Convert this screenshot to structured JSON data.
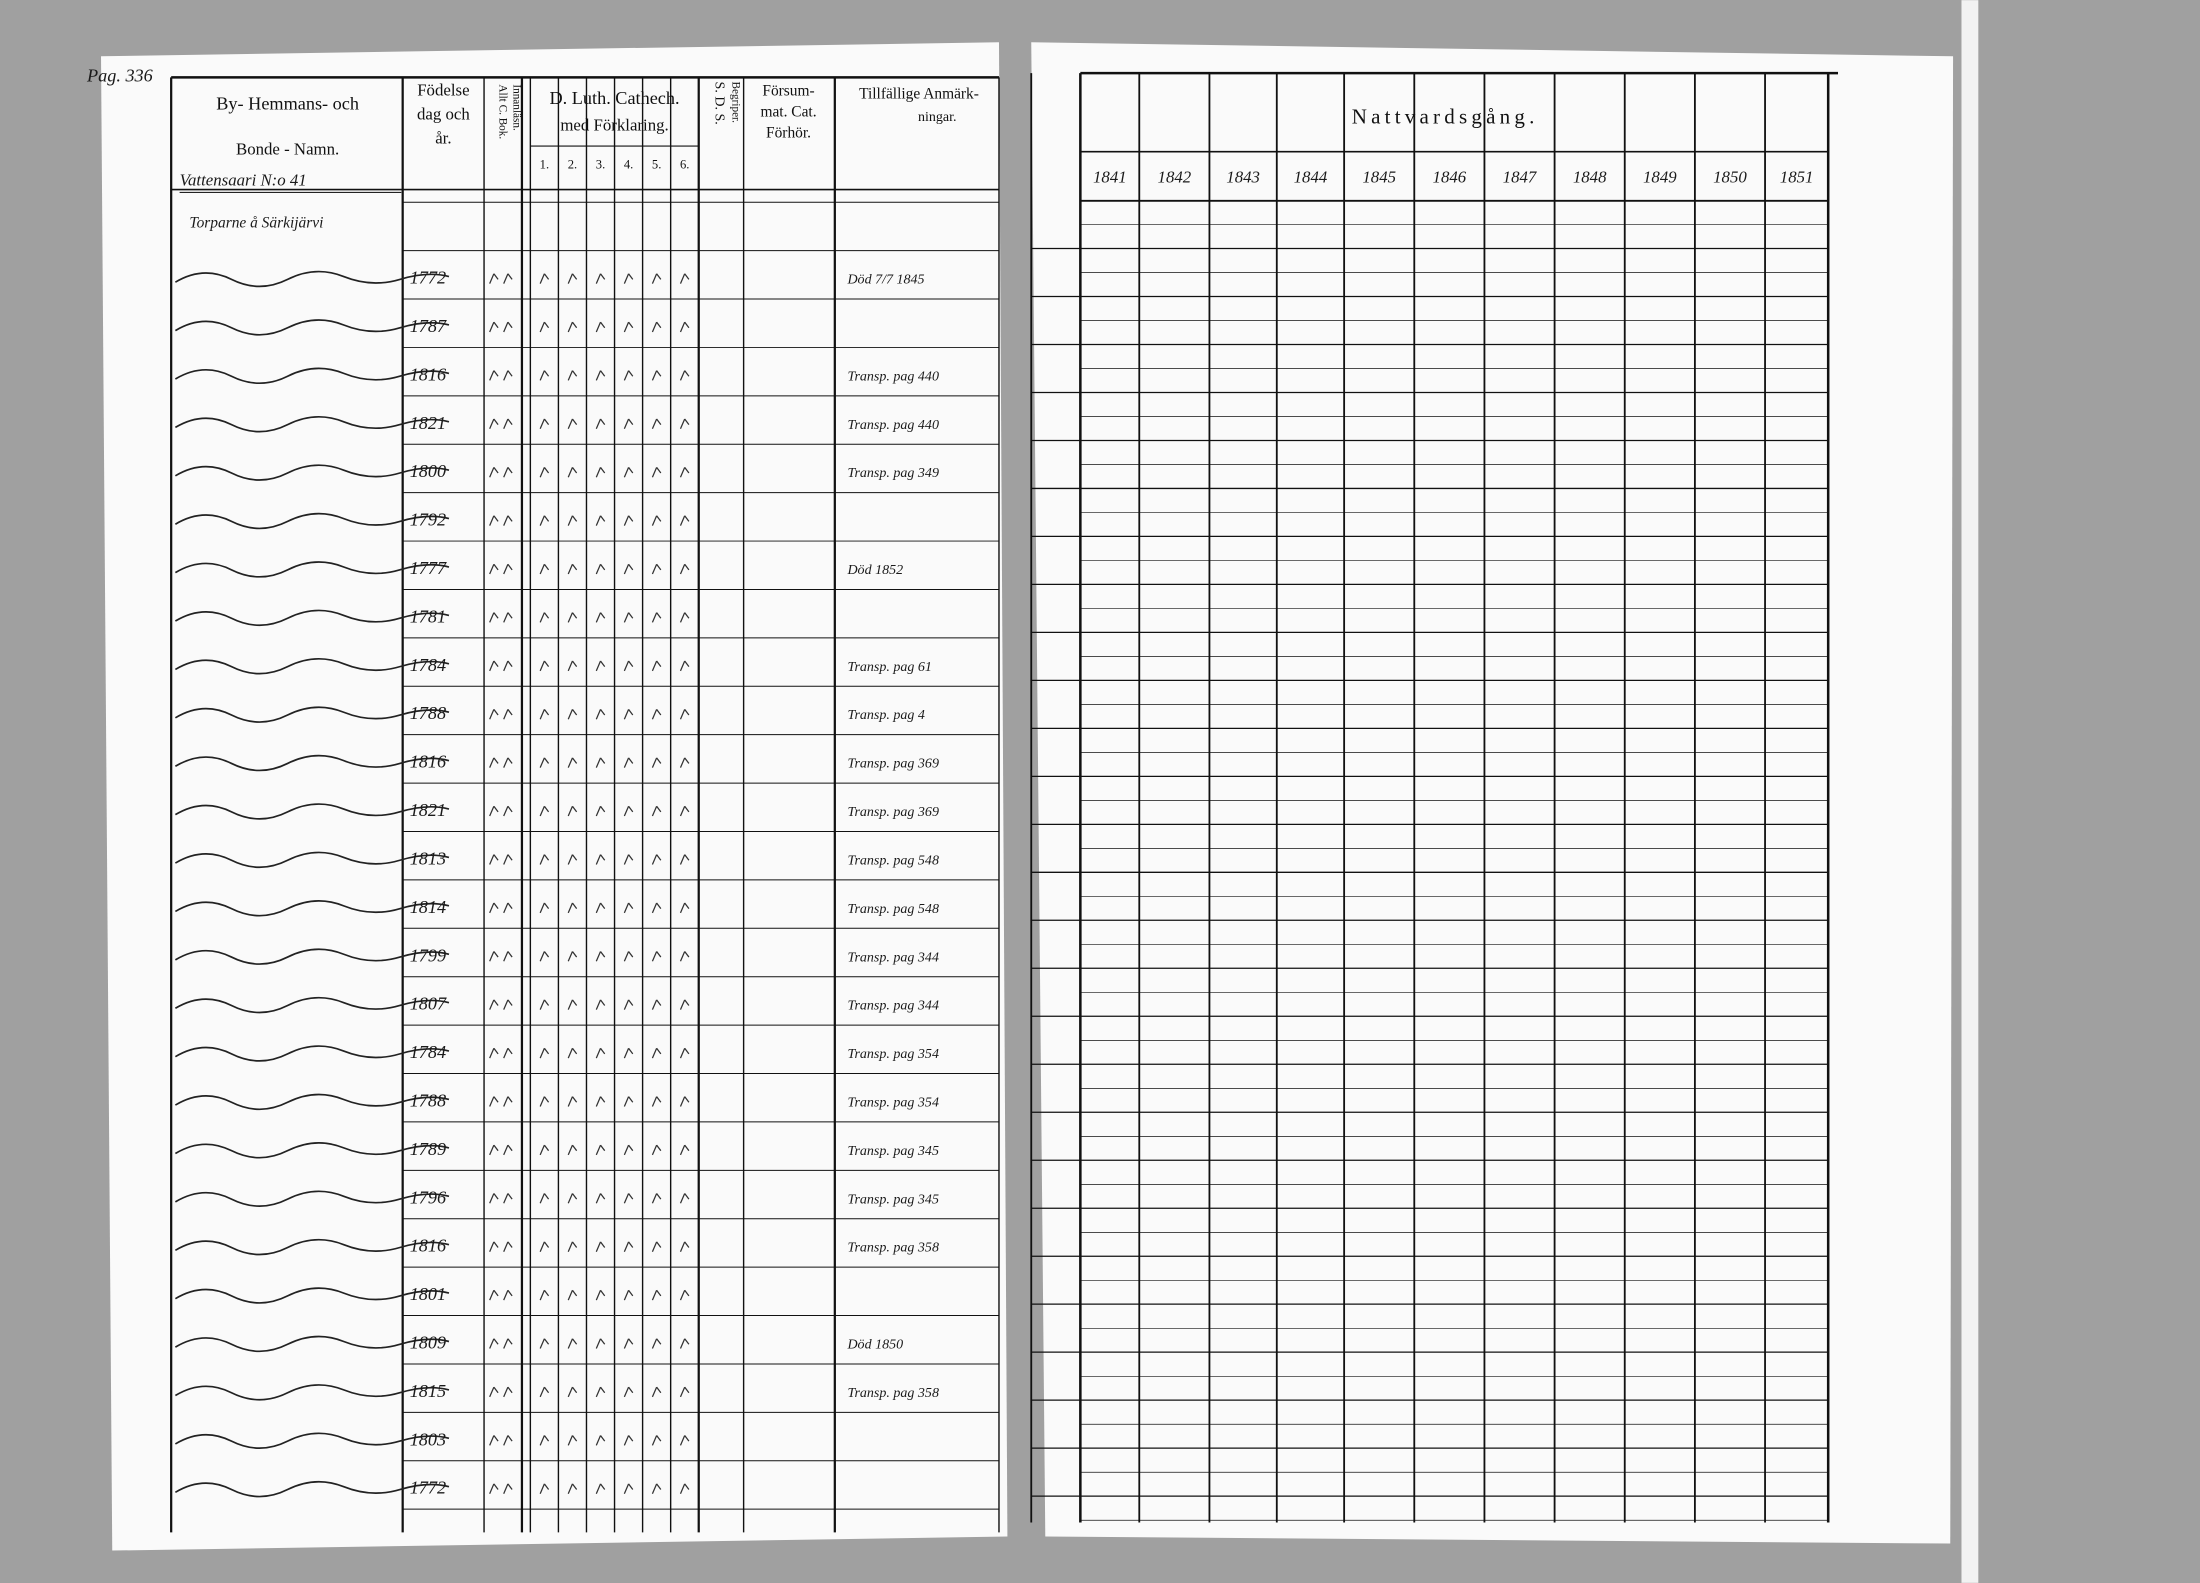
{
  "page_number": "Pag. 336",
  "left_page": {
    "headers": {
      "name": [
        "By- Hemmans- och",
        "Bonde - Namn."
      ],
      "birth": [
        "Födelse",
        "dag och",
        "år."
      ],
      "reading": [
        "Allt C. Bok.",
        "Innanläsn."
      ],
      "catechism": [
        "D. Luth. Cathech.",
        "med Förklaring."
      ],
      "catechism_columns": [
        "1.",
        "2.",
        "3.",
        "4.",
        "5.",
        "6."
      ],
      "sds": [
        "S. D. S.",
        "Begriper."
      ],
      "missed": [
        "Försum-",
        "mat. Cat.",
        "Förhör."
      ],
      "remarks": [
        "Tillfällige Anmärk-",
        "ningar."
      ]
    },
    "village": "Vattensaari N:o 41",
    "section": "Torparne å Särkijärvi",
    "rows": [
      {
        "birth": "1772",
        "note": "Död 7/7 1845"
      },
      {
        "birth": "1787"
      },
      {
        "birth": "1816",
        "note": "Transp. pag 440"
      },
      {
        "birth": "1821",
        "note": "Transp. pag 440"
      },
      {
        "birth": "1800",
        "note": "Transp. pag 349"
      },
      {
        "birth": "1792"
      },
      {
        "birth": "1777",
        "note": "Död 1852"
      },
      {
        "birth": "1781"
      },
      {
        "birth": "1784",
        "note": "Transp. pag 61"
      },
      {
        "birth": "1788",
        "note": "Transp. pag 4"
      },
      {
        "birth": "1816",
        "note": "Transp. pag 369"
      },
      {
        "birth": "1821",
        "note": "Transp. pag 369"
      },
      {
        "birth": "1813",
        "note": "Transp. pag 548"
      },
      {
        "birth": "1814",
        "note": "Transp. pag 548"
      },
      {
        "birth": "1799",
        "note": "Transp. pag 344"
      },
      {
        "birth": "1807",
        "note": "Transp. pag 344"
      },
      {
        "birth": "1784",
        "note": "Transp. pag 354"
      },
      {
        "birth": "1788",
        "note": "Transp. pag 354"
      },
      {
        "birth": "1789",
        "note": "Transp. pag 345"
      },
      {
        "birth": "1796",
        "note": "Transp. pag 345"
      },
      {
        "birth": "1816",
        "note": "Transp. pag 358"
      },
      {
        "birth": "1801"
      },
      {
        "birth": "1809",
        "note": "Död 1850"
      },
      {
        "birth": "1815",
        "note": "Transp. pag 358"
      },
      {
        "birth": "1803"
      },
      {
        "birth": "1772"
      }
    ]
  },
  "right_page": {
    "title": "Nattvardsgång.",
    "years": [
      "1841",
      "1842",
      "1843",
      "1844",
      "1845",
      "1846",
      "1847",
      "1848",
      "1849",
      "1850",
      "1851"
    ]
  }
}
